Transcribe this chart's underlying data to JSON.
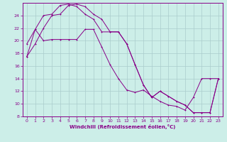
{
  "xlabel": "Windchill (Refroidissement éolien,°C)",
  "bg_color": "#cceee8",
  "grid_color": "#aacccc",
  "line_color": "#880088",
  "xlim": [
    -0.5,
    23.5
  ],
  "ylim": [
    8,
    26
  ],
  "yticks": [
    8,
    10,
    12,
    14,
    16,
    18,
    20,
    22,
    24
  ],
  "xticks": [
    0,
    1,
    2,
    3,
    4,
    5,
    6,
    7,
    8,
    9,
    10,
    11,
    12,
    13,
    14,
    15,
    16,
    17,
    18,
    19,
    20,
    21,
    22,
    23
  ],
  "series1_x": [
    0,
    1,
    2,
    3,
    4,
    5,
    6,
    7,
    8,
    9,
    10,
    11,
    12,
    13,
    14,
    15,
    16,
    17,
    18,
    19,
    20,
    21,
    22,
    23
  ],
  "series1_y": [
    19.5,
    21.8,
    24.0,
    24.2,
    25.6,
    25.8,
    25.4,
    24.2,
    23.4,
    21.4,
    21.4,
    21.4,
    19.5,
    16.2,
    13.0,
    11.0,
    12.0,
    11.2,
    10.4,
    9.8,
    8.6,
    8.6,
    8.6,
    14.0
  ],
  "series2_x": [
    0,
    1,
    2,
    3,
    4,
    5,
    6,
    7,
    8,
    9,
    10,
    11,
    12,
    13,
    14,
    15,
    16,
    17,
    18,
    19,
    20,
    21,
    22,
    23
  ],
  "series2_y": [
    17.5,
    21.8,
    20.0,
    20.2,
    20.2,
    20.2,
    20.2,
    21.8,
    21.8,
    19.0,
    16.2,
    14.0,
    12.2,
    11.8,
    12.2,
    11.2,
    10.4,
    9.8,
    9.6,
    9.0,
    11.0,
    14.0,
    14.0,
    14.0
  ],
  "series3_x": [
    0,
    1,
    2,
    3,
    4,
    5,
    6,
    7,
    8,
    9,
    10,
    11,
    12,
    13,
    14,
    15,
    16,
    17,
    18,
    19,
    20,
    21,
    22,
    23
  ],
  "series3_y": [
    17.5,
    19.5,
    22.0,
    24.0,
    24.2,
    25.6,
    25.8,
    25.4,
    24.2,
    23.4,
    21.4,
    21.4,
    19.5,
    16.2,
    13.0,
    11.0,
    12.0,
    11.2,
    10.4,
    9.8,
    8.6,
    8.6,
    8.6,
    14.0
  ]
}
